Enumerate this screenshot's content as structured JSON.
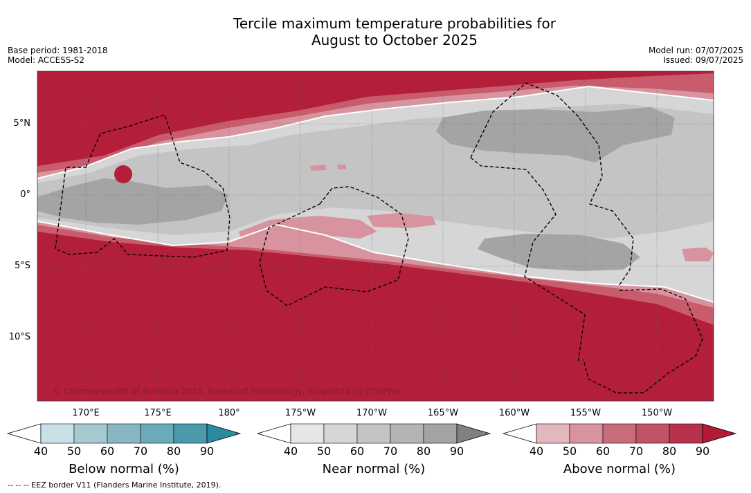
{
  "title": {
    "line1": "Tercile maximum temperature probabilities for",
    "line2": "August to October 2025"
  },
  "meta": {
    "base_period": "Base period: 1981-2018",
    "model": "Model: ACCESS-S2",
    "model_run": "Model run: 07/07/2025",
    "issued": "Issued: 09/07/2025"
  },
  "map": {
    "lat_labels": [
      "5°N",
      "0°",
      "5°S",
      "10°S"
    ],
    "lon_labels": [
      "170°E",
      "175°E",
      "180°",
      "175°W",
      "170°W",
      "165°W",
      "160°W",
      "155°W",
      "150°W"
    ],
    "copyright": "© Commonwealth of Australia 2025, Bureau of Meteorology, supported by COSPPac",
    "colors": {
      "above_dark": "#b31e3a",
      "above_mid": "#c85c6c",
      "above_light": "#d8949e",
      "near_light": "#d6d6d6",
      "near_mid": "#c4c4c4",
      "near_dark": "#a4a4a4",
      "grid": "#666666",
      "eez": "#000000"
    }
  },
  "colorbars": [
    {
      "label": "Below normal (%)",
      "ticks": [
        "40",
        "50",
        "60",
        "70",
        "80",
        "90"
      ],
      "colors": [
        "#c8e0e6",
        "#a6c8cf",
        "#88b6c2",
        "#6aaab9",
        "#4b9aab",
        "#2a8aa0"
      ]
    },
    {
      "label": "Near normal (%)",
      "ticks": [
        "40",
        "50",
        "60",
        "70",
        "80",
        "90"
      ],
      "colors": [
        "#e6e6e6",
        "#d6d6d6",
        "#c4c4c4",
        "#b4b4b4",
        "#a4a4a4",
        "#808080"
      ]
    },
    {
      "label": "Above normal (%)",
      "ticks": [
        "40",
        "50",
        "60",
        "70",
        "80",
        "90"
      ],
      "colors": [
        "#e2b8be",
        "#d8949e",
        "#c86c7c",
        "#c05466",
        "#b8324c",
        "#b21a36"
      ]
    }
  ],
  "footnote": "--  --  -- EEZ border V11 (Flanders Marine Institute, 2019)."
}
